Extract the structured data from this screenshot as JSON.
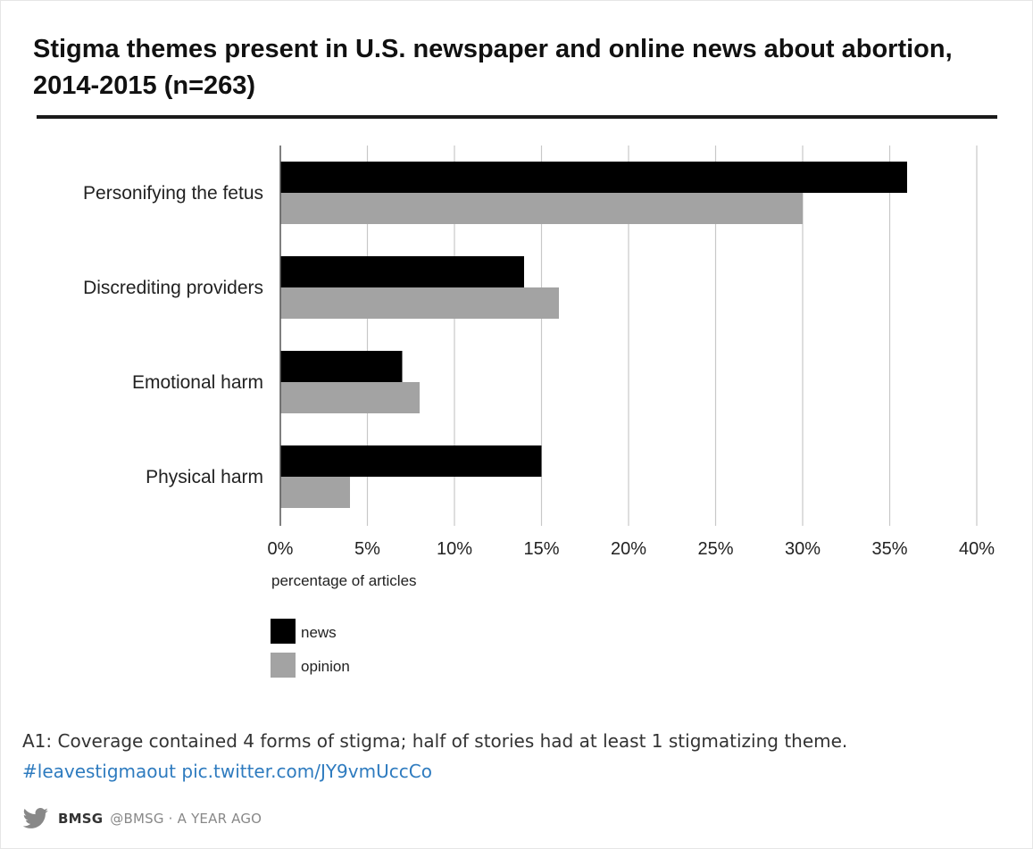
{
  "chart_data": {
    "type": "bar",
    "orientation": "horizontal",
    "title": "Stigma themes present in U.S. newspaper and online news about abortion, 2014-2015 (n=263)",
    "xlabel": "percentage of articles",
    "categories": [
      "Personifying the fetus",
      "Discrediting providers",
      "Emotional harm",
      "Physical harm"
    ],
    "series": [
      {
        "name": "news",
        "values": [
          36,
          14,
          7,
          15
        ],
        "color": "#000000"
      },
      {
        "name": "opinion",
        "values": [
          30,
          16,
          8,
          4
        ],
        "color": "#a3a3a3"
      }
    ],
    "xticks": [
      "0%",
      "5%",
      "10%",
      "15%",
      "20%",
      "25%",
      "30%",
      "35%",
      "40%"
    ],
    "xlim": [
      0,
      40
    ],
    "grid": "vertical",
    "legend": "bottom-left"
  },
  "tweet": {
    "text": "A1: Coverage contained 4 forms of stigma; half of stories had at least 1 stigmatizing theme.",
    "hashtag": "#leavestigmaout",
    "pic_link": "pic.twitter.com/JY9vmUccCo",
    "author_name": "BMSG",
    "handle": "@BMSG",
    "separator": "·",
    "time": "A YEAR AGO",
    "icon": "twitter-bird-icon",
    "link_color": "#2e7bbf"
  }
}
